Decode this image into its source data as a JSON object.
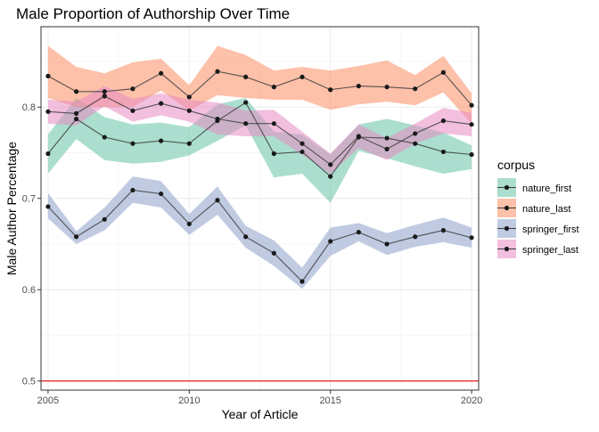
{
  "chart_data": {
    "type": "line",
    "title": "Male Proportion of Authorship Over Time",
    "xlabel": "Year of Article",
    "ylabel": "Male Author Percentage",
    "x": [
      2005,
      2006,
      2007,
      2008,
      2009,
      2010,
      2011,
      2012,
      2013,
      2014,
      2015,
      2016,
      2017,
      2018,
      2019,
      2020
    ],
    "xlim": [
      2004.75,
      2020.25
    ],
    "ylim": [
      0.49,
      0.888
    ],
    "x_ticks": [
      2005,
      2010,
      2015,
      2020
    ],
    "x_tick_labels": [
      "2005",
      "2010",
      "2015",
      "2020"
    ],
    "y_ticks": [
      0.5,
      0.6,
      0.7,
      0.8
    ],
    "y_tick_labels": [
      "0.5",
      "0.6",
      "0.7",
      "0.8"
    ],
    "grid": true,
    "legend_title": "corpus",
    "legend_position": "right",
    "reference_line": {
      "y": 0.5,
      "color": "#e41a1c"
    },
    "series": [
      {
        "name": "nature_first",
        "color": "#66c2a5",
        "values": [
          0.749,
          0.787,
          0.767,
          0.76,
          0.763,
          0.76,
          0.785,
          0.805,
          0.749,
          0.751,
          0.724,
          0.767,
          0.766,
          0.76,
          0.751,
          0.748
        ],
        "lower": [
          0.727,
          0.765,
          0.742,
          0.738,
          0.74,
          0.747,
          0.763,
          0.78,
          0.723,
          0.727,
          0.695,
          0.752,
          0.744,
          0.735,
          0.727,
          0.732
        ],
        "upper": [
          0.77,
          0.81,
          0.789,
          0.781,
          0.783,
          0.778,
          0.803,
          0.81,
          0.773,
          0.77,
          0.748,
          0.781,
          0.787,
          0.78,
          0.772,
          0.758
        ]
      },
      {
        "name": "nature_last",
        "color": "#fc8d62",
        "values": [
          0.834,
          0.817,
          0.817,
          0.82,
          0.837,
          0.811,
          0.839,
          0.833,
          0.822,
          0.833,
          0.819,
          0.823,
          0.822,
          0.82,
          0.838,
          0.802
        ],
        "lower": [
          0.81,
          0.8,
          0.8,
          0.8,
          0.818,
          0.796,
          0.813,
          0.81,
          0.808,
          0.808,
          0.797,
          0.803,
          0.806,
          0.802,
          0.816,
          0.782
        ],
        "upper": [
          0.867,
          0.844,
          0.837,
          0.849,
          0.853,
          0.824,
          0.867,
          0.857,
          0.84,
          0.844,
          0.84,
          0.845,
          0.851,
          0.835,
          0.856,
          0.815
        ]
      },
      {
        "name": "springer_first",
        "color": "#8da0cb",
        "values": [
          0.691,
          0.658,
          0.677,
          0.709,
          0.705,
          0.672,
          0.698,
          0.658,
          0.64,
          0.609,
          0.653,
          0.663,
          0.65,
          0.658,
          0.665,
          0.657
        ],
        "lower": [
          0.678,
          0.65,
          0.665,
          0.695,
          0.69,
          0.66,
          0.682,
          0.646,
          0.626,
          0.601,
          0.637,
          0.653,
          0.638,
          0.647,
          0.652,
          0.646
        ],
        "upper": [
          0.706,
          0.664,
          0.69,
          0.724,
          0.719,
          0.683,
          0.713,
          0.67,
          0.654,
          0.624,
          0.668,
          0.673,
          0.662,
          0.671,
          0.679,
          0.668
        ]
      },
      {
        "name": "springer_last",
        "color": "#e78ac3",
        "values": [
          0.795,
          0.793,
          0.812,
          0.796,
          0.804,
          0.796,
          0.787,
          0.782,
          0.782,
          0.76,
          0.737,
          0.768,
          0.754,
          0.771,
          0.785,
          0.781
        ],
        "lower": [
          0.782,
          0.78,
          0.801,
          0.784,
          0.791,
          0.784,
          0.77,
          0.768,
          0.768,
          0.748,
          0.727,
          0.755,
          0.742,
          0.76,
          0.771,
          0.768
        ],
        "upper": [
          0.808,
          0.806,
          0.823,
          0.809,
          0.815,
          0.808,
          0.805,
          0.796,
          0.797,
          0.773,
          0.749,
          0.781,
          0.766,
          0.782,
          0.799,
          0.794
        ]
      }
    ]
  }
}
